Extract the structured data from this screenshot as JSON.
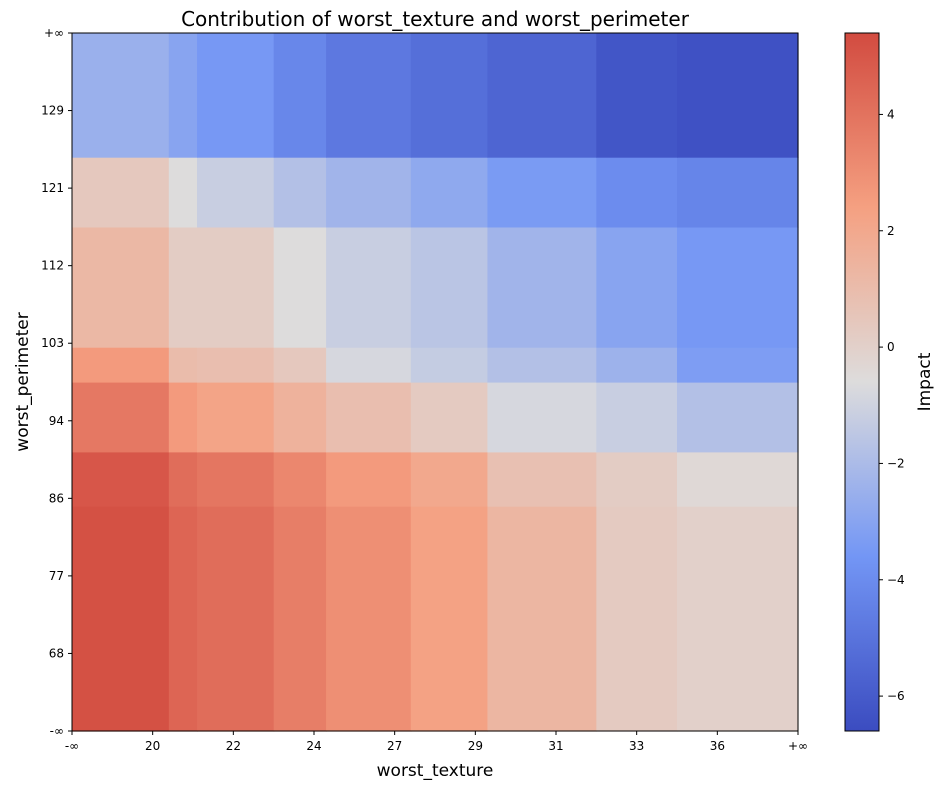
{
  "chart_data": {
    "type": "heatmap",
    "title": "Contribution of worst_texture and worst_perimeter",
    "xlabel": "worst_texture",
    "ylabel": "worst_perimeter",
    "x_tick_labels": [
      "-∞",
      "20",
      "22",
      "24",
      "27",
      "29",
      "31",
      "33",
      "36",
      "+∞"
    ],
    "y_tick_labels": [
      "-∞",
      "68",
      "77",
      "86",
      "94",
      "103",
      "112",
      "121",
      "129",
      "+∞"
    ],
    "x_bin_edges": [
      0,
      1.2,
      1.55,
      2.5,
      3.15,
      4.2,
      5.15,
      6.5,
      7.5,
      9
    ],
    "y_bin_edges": [
      0,
      2.9,
      3.6,
      4.5,
      4.95,
      6.5,
      7.4,
      9
    ],
    "impact_grid": [
      [
        5.2,
        4.5,
        4.2,
        3.6,
        3.0,
        2.3,
        1.3,
        0.3,
        0.0
      ],
      [
        5.0,
        4.2,
        3.9,
        3.3,
        2.6,
        2.0,
        0.8,
        0.2,
        -0.4
      ],
      [
        3.8,
        2.6,
        2.2,
        1.5,
        0.9,
        0.3,
        -0.8,
        -1.2,
        -1.8
      ],
      [
        2.6,
        1.0,
        0.9,
        0.4,
        -0.8,
        -1.3,
        -1.8,
        -2.4,
        -3.3
      ],
      [
        1.2,
        0.2,
        0.2,
        -0.6,
        -1.2,
        -1.6,
        -2.3,
        -3.0,
        -3.5
      ],
      [
        0.4,
        -0.6,
        -1.2,
        -1.8,
        -2.3,
        -2.8,
        -3.4,
        -4.0,
        -4.3
      ],
      [
        -2.5,
        -3.0,
        -3.5,
        -4.2,
        -4.8,
        -5.2,
        -5.6,
        -6.2,
        -6.4
      ]
    ],
    "colorbar": {
      "label": "Impact",
      "range": [
        -6.6,
        5.4
      ],
      "ticks": [
        4,
        2,
        0,
        -2,
        -4,
        -6
      ],
      "tick_labels": [
        "4",
        "2",
        "0",
        "−2",
        "−4",
        "−6"
      ],
      "colormap": "coolwarm"
    }
  }
}
